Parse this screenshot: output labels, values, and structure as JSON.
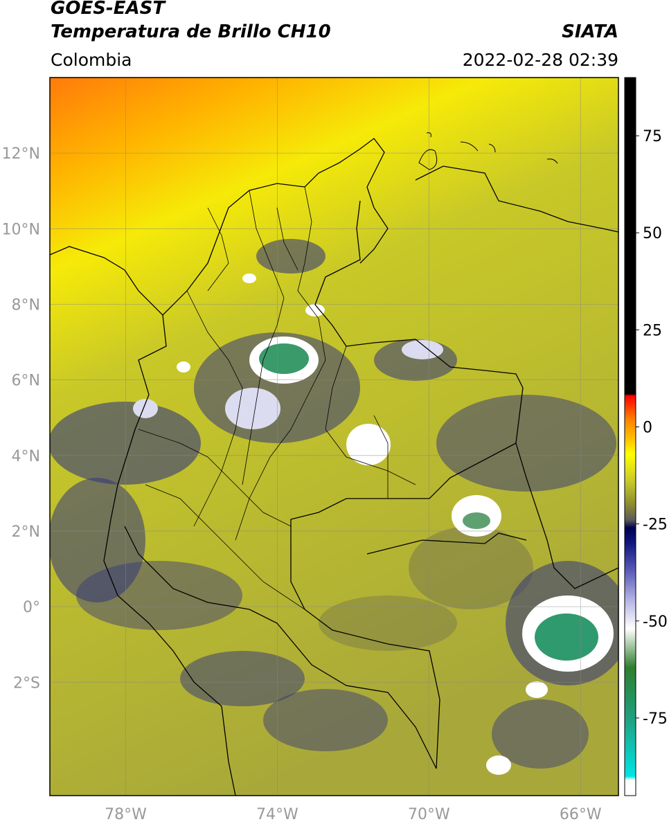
{
  "header": {
    "satellite": "GOES-EAST",
    "product": "Temperatura de Brillo CH10",
    "region": "Colombia",
    "source": "SIATA",
    "timestamp": "2022-02-28 02:39"
  },
  "map": {
    "lon_range": [
      -80,
      -65
    ],
    "lat_range": [
      -5,
      14
    ],
    "lat_ticks": [
      {
        "value": 12,
        "label": "12°N"
      },
      {
        "value": 10,
        "label": "10°N"
      },
      {
        "value": 8,
        "label": "8°N"
      },
      {
        "value": 6,
        "label": "6°N"
      },
      {
        "value": 4,
        "label": "4°N"
      },
      {
        "value": 2,
        "label": "2°N"
      },
      {
        "value": 0,
        "label": "0°"
      },
      {
        "value": -2,
        "label": "2°S"
      }
    ],
    "lon_ticks": [
      {
        "value": -78,
        "label": "78°W"
      },
      {
        "value": -74,
        "label": "74°W"
      },
      {
        "value": -70,
        "label": "70°W"
      },
      {
        "value": -66,
        "label": "66°W"
      }
    ],
    "grid": true
  },
  "colorbar": {
    "range": [
      -95,
      90
    ],
    "ticks": [
      {
        "value": 75,
        "label": "75"
      },
      {
        "value": 50,
        "label": "50"
      },
      {
        "value": 25,
        "label": "25"
      },
      {
        "value": 0,
        "label": "0"
      },
      {
        "value": -25,
        "label": "-25"
      },
      {
        "value": -50,
        "label": "-50"
      },
      {
        "value": -75,
        "label": "-75"
      }
    ],
    "stops": [
      {
        "value": -95,
        "color": "#ffffff"
      },
      {
        "value": -91,
        "color": "#ffffff"
      },
      {
        "value": -90,
        "color": "#00e5e5"
      },
      {
        "value": -75,
        "color": "#1fa07f"
      },
      {
        "value": -62,
        "color": "#2d7f2d"
      },
      {
        "value": -52,
        "color": "#ffffff"
      },
      {
        "value": -45,
        "color": "#b8b8e8"
      },
      {
        "value": -37,
        "color": "#5a5ab8"
      },
      {
        "value": -30,
        "color": "#101880"
      },
      {
        "value": -26,
        "color": "#000050"
      },
      {
        "value": -24,
        "color": "#5a5a5a"
      },
      {
        "value": -20,
        "color": "#8c8c30"
      },
      {
        "value": -14,
        "color": "#c9c92a"
      },
      {
        "value": -7,
        "color": "#ffff00"
      },
      {
        "value": -3,
        "color": "#ffc000"
      },
      {
        "value": 2,
        "color": "#ff8000"
      },
      {
        "value": 8,
        "color": "#ff0000"
      },
      {
        "value": 8.5,
        "color": "#000000"
      },
      {
        "value": 90,
        "color": "#000000"
      }
    ]
  }
}
